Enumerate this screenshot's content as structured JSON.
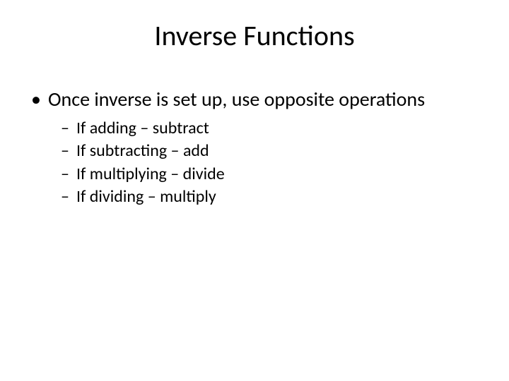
{
  "slide": {
    "title": "Inverse Functions",
    "title_fontsize": 40,
    "body_l1_fontsize": 28,
    "body_l2_fontsize": 24,
    "text_color": "#000000",
    "background_color": "#ffffff",
    "bullets_l1": [
      "Once inverse is set up, use opposite operations"
    ],
    "bullets_l2": [
      "If adding – subtract",
      "If subtracting – add",
      "If multiplying – divide",
      "If dividing – multiply"
    ]
  }
}
